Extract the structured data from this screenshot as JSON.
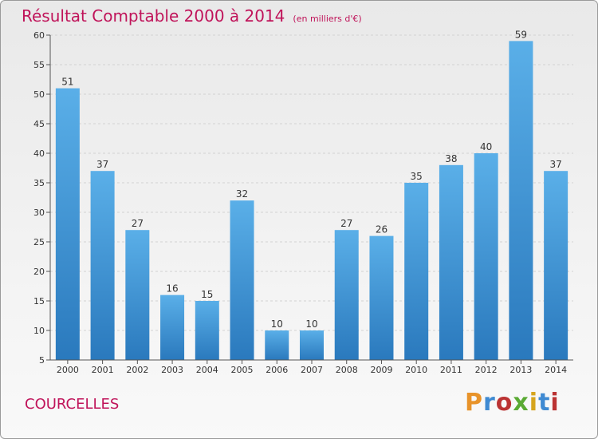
{
  "header": {
    "title": "Résultat Comptable 2000 à 2014",
    "subtitle": "(en milliers d'€)"
  },
  "footer": {
    "location": "COURCELLES",
    "brand": "Proxiti",
    "brand_colors": [
      "#e8932a",
      "#3f8ad2",
      "#b33",
      "#5aaa34",
      "#d6a51e",
      "#3f8ad2",
      "#b33"
    ]
  },
  "colors": {
    "bar_light": "#5aafe8",
    "bar_dark": "#2a79bd",
    "accent": "#c0145a",
    "grid": "#d2d2d2",
    "axis_text": "#333333"
  },
  "chart_data": {
    "type": "bar",
    "categories": [
      "2000",
      "2001",
      "2002",
      "2003",
      "2004",
      "2005",
      "2006",
      "2007",
      "2008",
      "2009",
      "2010",
      "2011",
      "2012",
      "2013",
      "2014"
    ],
    "values": [
      51,
      37,
      27,
      16,
      15,
      32,
      10,
      10,
      27,
      26,
      35,
      38,
      40,
      59,
      37
    ],
    "ylim": [
      5,
      60
    ],
    "yticks": [
      5,
      10,
      15,
      20,
      25,
      30,
      35,
      40,
      45,
      50,
      55,
      60
    ],
    "grid": "horizontal dashed",
    "legend": "none"
  }
}
